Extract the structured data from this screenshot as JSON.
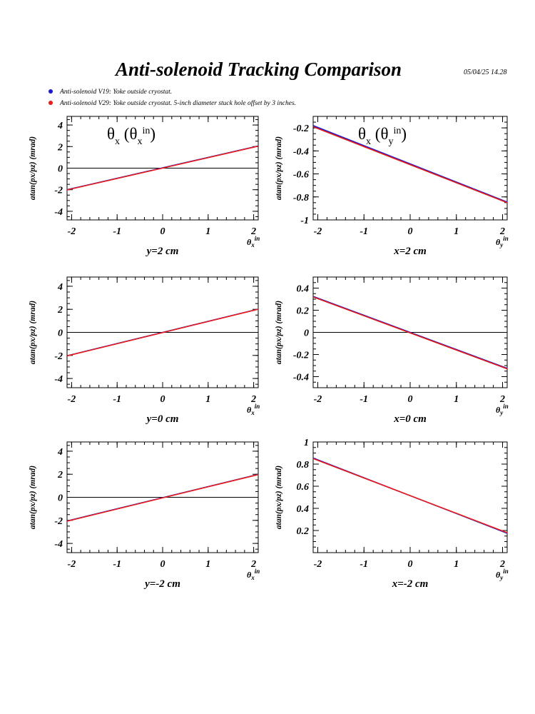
{
  "title": "Anti-solenoid Tracking Comparison",
  "datestamp": "05/04/25   14.28",
  "legend": [
    {
      "label": "Anti-solenoid V19: Yoke outside cryostat.",
      "color": "#1a1acc"
    },
    {
      "label": "Anti-solenoid V29: Yoke outside cryostat. 5-inch diameter stuck hole offset by 3 inches.",
      "color": "#e81c1c"
    }
  ],
  "chart_data": [
    {
      "type": "line",
      "annotation": "θx (θx in)",
      "annotation_parts": {
        "base": "θ",
        "sub": "x",
        "inner": "θ",
        "inner_sub": "x",
        "sup": "in"
      },
      "xlabel": "y=2 cm",
      "axis_var": {
        "sym": "θ",
        "sub": "x",
        "sup": "in"
      },
      "ylabel": "atan(px/pz) (mrad)",
      "xlim": [
        -2.1,
        2.1
      ],
      "ylim": [
        -4.8,
        4.8
      ],
      "xticks": [
        -2,
        -1,
        0,
        1,
        2
      ],
      "yticks": [
        4,
        2,
        0,
        -2,
        -4
      ],
      "zero_line": true,
      "series": [
        {
          "name": "Anti-solenoid V19",
          "x": [
            -2.1,
            2.1
          ],
          "y": [
            -2.0,
            2.06
          ]
        },
        {
          "name": "Anti-solenoid V29",
          "x": [
            -2.1,
            2.1
          ],
          "y": [
            -2.02,
            2.04
          ]
        }
      ]
    },
    {
      "type": "line",
      "annotation": "θx (θy in)",
      "annotation_parts": {
        "base": "θ",
        "sub": "x",
        "inner": "θ",
        "inner_sub": "y",
        "sup": "in"
      },
      "xlabel": "x=2 cm",
      "axis_var": {
        "sym": "θ",
        "sub": "y",
        "sup": "in"
      },
      "ylabel": "atan(px/pz) (mrad)",
      "xlim": [
        -2.1,
        2.1
      ],
      "ylim": [
        -1.0,
        -0.1
      ],
      "xticks": [
        -2,
        -1,
        0,
        1,
        2
      ],
      "yticks": [
        -0.2,
        -0.4,
        -0.6,
        -0.8,
        -1
      ],
      "zero_line": false,
      "series": [
        {
          "name": "Anti-solenoid V19",
          "x": [
            -2.1,
            2.1
          ],
          "y": [
            -0.18,
            -0.845
          ]
        },
        {
          "name": "Anti-solenoid V29",
          "x": [
            -2.1,
            2.1
          ],
          "y": [
            -0.19,
            -0.85
          ]
        }
      ]
    },
    {
      "type": "line",
      "annotation": "",
      "xlabel": "y=0 cm",
      "axis_var": {
        "sym": "θ",
        "sub": "x",
        "sup": "in"
      },
      "ylabel": "atan(px/pz) (mrad)",
      "xlim": [
        -2.1,
        2.1
      ],
      "ylim": [
        -4.8,
        4.8
      ],
      "xticks": [
        -2,
        -1,
        0,
        1,
        2
      ],
      "yticks": [
        4,
        2,
        0,
        -2,
        -4
      ],
      "zero_line": true,
      "series": [
        {
          "name": "Anti-solenoid V19",
          "x": [
            -2.1,
            2.1
          ],
          "y": [
            -2.03,
            2.02
          ]
        },
        {
          "name": "Anti-solenoid V29",
          "x": [
            -2.1,
            2.1
          ],
          "y": [
            -2.04,
            2.01
          ]
        }
      ]
    },
    {
      "type": "line",
      "annotation": "",
      "xlabel": "x=0 cm",
      "axis_var": {
        "sym": "θ",
        "sub": "y",
        "sup": "in"
      },
      "ylabel": "atan(px/pz) (mrad)",
      "xlim": [
        -2.1,
        2.1
      ],
      "ylim": [
        -0.5,
        0.5
      ],
      "xticks": [
        -2,
        -1,
        0,
        1,
        2
      ],
      "yticks": [
        0.4,
        0.2,
        0,
        -0.2,
        -0.4
      ],
      "zero_line": true,
      "series": [
        {
          "name": "Anti-solenoid V19",
          "x": [
            -2.1,
            2.1
          ],
          "y": [
            0.325,
            -0.325
          ]
        },
        {
          "name": "Anti-solenoid V29",
          "x": [
            -2.1,
            2.1
          ],
          "y": [
            0.32,
            -0.33
          ]
        }
      ]
    },
    {
      "type": "line",
      "annotation": "",
      "xlabel": "y=-2 cm",
      "axis_var": {
        "sym": "θ",
        "sub": "x",
        "sup": "in"
      },
      "ylabel": "atan(px/pz) (mrad)",
      "xlim": [
        -2.1,
        2.1
      ],
      "ylim": [
        -4.8,
        4.8
      ],
      "xticks": [
        -2,
        -1,
        0,
        1,
        2
      ],
      "yticks": [
        4,
        2,
        0,
        -2,
        -4
      ],
      "zero_line": true,
      "series": [
        {
          "name": "Anti-solenoid V19",
          "x": [
            -2.1,
            2.1
          ],
          "y": [
            -2.05,
            1.99
          ]
        },
        {
          "name": "Anti-solenoid V29",
          "x": [
            -2.1,
            2.1
          ],
          "y": [
            -2.07,
            1.97
          ]
        }
      ]
    },
    {
      "type": "line",
      "annotation": "",
      "xlabel": "x=-2 cm",
      "axis_var": {
        "sym": "θ",
        "sub": "y",
        "sup": "in"
      },
      "ylabel": "atan(px/pz) (mrad)",
      "xlim": [
        -2.1,
        2.1
      ],
      "ylim": [
        0.0,
        1.0
      ],
      "xticks": [
        -2,
        -1,
        0,
        1,
        2
      ],
      "yticks": [
        1,
        0.8,
        0.6,
        0.4,
        0.2
      ],
      "zero_line": false,
      "series": [
        {
          "name": "Anti-solenoid V19",
          "x": [
            -2.1,
            2.1
          ],
          "y": [
            0.855,
            0.175
          ]
        },
        {
          "name": "Anti-solenoid V29",
          "x": [
            -2.1,
            2.1
          ],
          "y": [
            0.85,
            0.18
          ]
        }
      ]
    }
  ]
}
